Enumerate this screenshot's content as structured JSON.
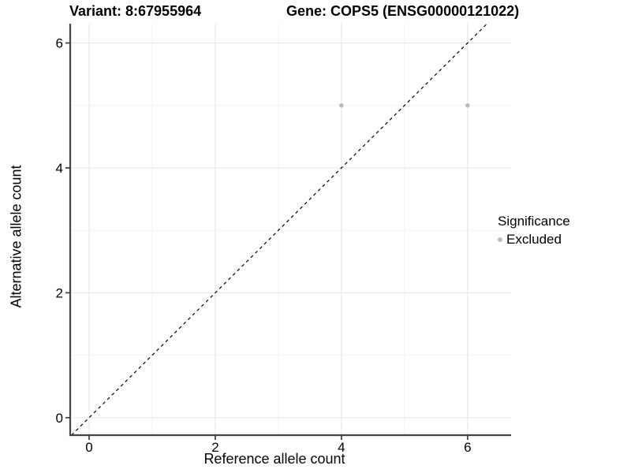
{
  "chart_data": {
    "type": "scatter",
    "title_left": "Variant: 8:67955964",
    "title_right": "Gene: COPS5 (ENSG00000121022)",
    "xlabel": "Reference allele count",
    "ylabel": "Alternative allele count",
    "x_ticks": [
      0,
      2,
      4,
      6
    ],
    "y_ticks": [
      0,
      2,
      4,
      6
    ],
    "x_minor": [
      1,
      3,
      5
    ],
    "y_minor": [
      1,
      3,
      5
    ],
    "xlim": [
      -0.3,
      6.69
    ],
    "ylim": [
      -0.28,
      6.31
    ],
    "grid": true,
    "points": [
      {
        "x": 4,
        "y": 5,
        "significance": "Excluded"
      },
      {
        "x": 6,
        "y": 5,
        "significance": "Excluded"
      }
    ],
    "reference_line": {
      "slope": 1,
      "intercept": 0,
      "style": "dashed"
    },
    "legend": {
      "title": "Significance",
      "position": "right",
      "items": [
        {
          "label": "Excluded",
          "color": "#bdbdbd"
        }
      ]
    },
    "colors": {
      "point": "#bdbdbd",
      "grid_major": "#e4e4e4",
      "grid_minor": "#f2f2f2",
      "axis": "#454545",
      "reference_line": "#000000",
      "text": "#000000"
    }
  }
}
